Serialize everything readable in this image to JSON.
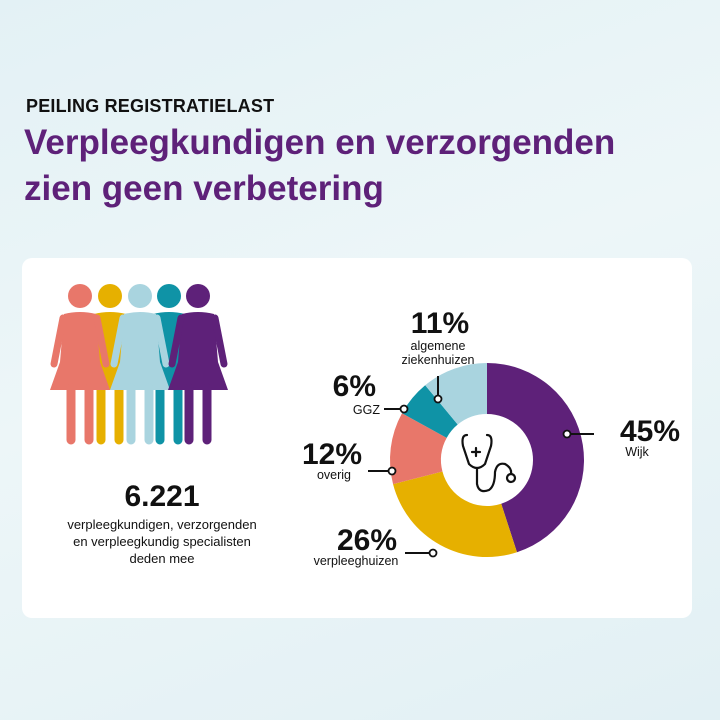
{
  "header": {
    "kicker": "PEILING REGISTRATIELAST",
    "title_line1": "Verpleegkundigen en verzorgenden",
    "title_line2": "zien geen verbetering"
  },
  "participants": {
    "count": "6.221",
    "desc_line1": "verpleegkundigen, verzorgenden",
    "desc_line2": "en verpleegkundig specialisten",
    "desc_line3": "deden mee",
    "icon": "women-group-icon",
    "colors": [
      "#e8776a",
      "#e6b000",
      "#a9d4df",
      "#0f93a6",
      "#5e2179"
    ]
  },
  "chart_data": {
    "type": "pie",
    "variant": "donut",
    "center_icon": "stethoscope-icon",
    "slices": [
      {
        "label": "Wijk",
        "value": 45,
        "display": "45%",
        "color": "#5e2179"
      },
      {
        "label": "verpleeghuizen",
        "value": 26,
        "display": "26%",
        "color": "#e6b000"
      },
      {
        "label": "overig",
        "value": 12,
        "display": "12%",
        "color": "#e8776a"
      },
      {
        "label": "GGZ",
        "value": 6,
        "display": "6%",
        "color": "#0f93a6"
      },
      {
        "label": "algemene ziekenhuizen",
        "label_lines": [
          "algemene",
          "ziekenhuizen"
        ],
        "value": 11,
        "display": "11%",
        "color": "#a9d4df"
      }
    ]
  }
}
